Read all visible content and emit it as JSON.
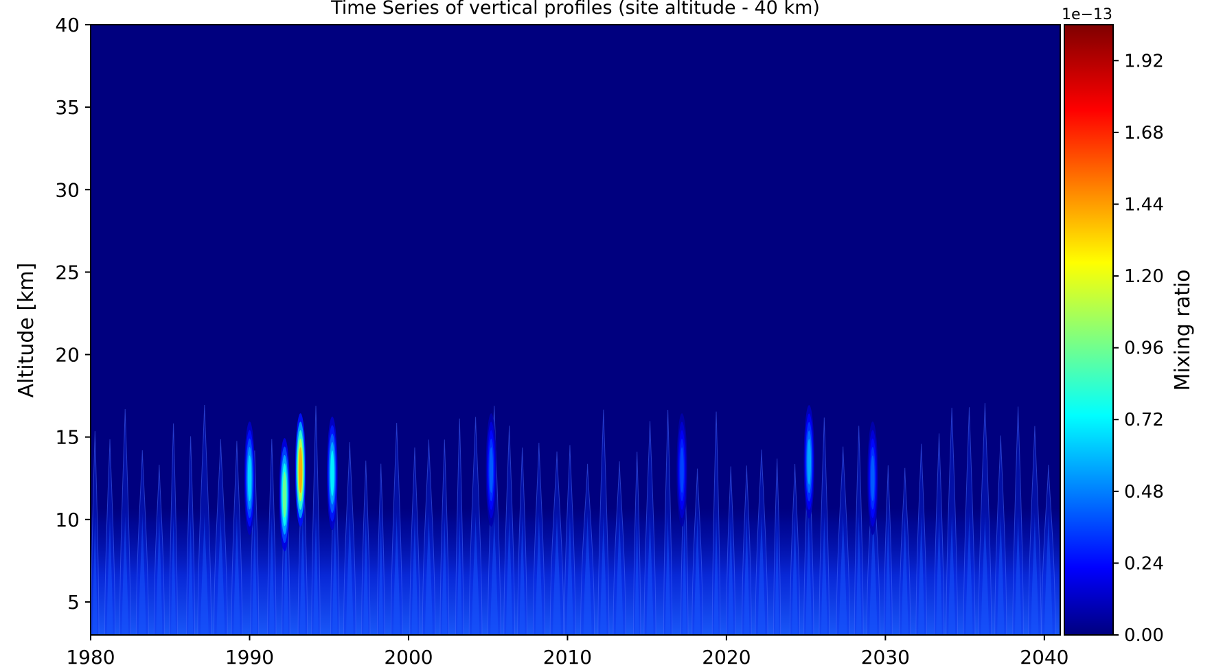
{
  "chart_data": {
    "type": "heatmap",
    "title": "Time Series of vertical profiles (site altitude - 40 km)",
    "xlabel": "",
    "ylabel": "Altitude [km]",
    "xlim": [
      1980,
      2041
    ],
    "ylim": [
      3,
      40
    ],
    "x_ticks": [
      1980,
      1990,
      2000,
      2010,
      2020,
      2030,
      2040
    ],
    "y_ticks": [
      5,
      10,
      15,
      20,
      25,
      30,
      35,
      40
    ],
    "grid": false,
    "colormap": "jet",
    "colorbar": {
      "label": "Mixing ratio",
      "multiplier": "1e−13",
      "range": [
        0,
        2.04
      ],
      "ticks": [
        0.0,
        0.24,
        0.48,
        0.72,
        0.96,
        1.2,
        1.44,
        1.68,
        1.92
      ],
      "tick_labels": [
        "0.00",
        "0.24",
        "0.48",
        "0.72",
        "0.96",
        "1.20",
        "1.44",
        "1.68",
        "1.92"
      ],
      "levels": 51
    },
    "background_value": 0.0,
    "features": [
      {
        "x": 1990.0,
        "y_center": 12.5,
        "peak": 0.7
      },
      {
        "x": 1992.2,
        "y_center": 11.5,
        "peak": 1.0
      },
      {
        "x": 1993.2,
        "y_center": 13.0,
        "peak": 1.45
      },
      {
        "x": 1995.2,
        "y_center": 12.8,
        "peak": 0.75
      },
      {
        "x": 2025.2,
        "y_center": 13.5,
        "peak": 0.6
      },
      {
        "x": 2029.2,
        "y_center": 12.5,
        "peak": 0.45
      },
      {
        "x": 2005.2,
        "y_center": 13.0,
        "peak": 0.45
      },
      {
        "x": 2017.2,
        "y_center": 13.0,
        "peak": 0.4
      }
    ]
  },
  "colors": {
    "background": "#00007f",
    "low_band": "#0020d0",
    "frame": "#000000"
  }
}
